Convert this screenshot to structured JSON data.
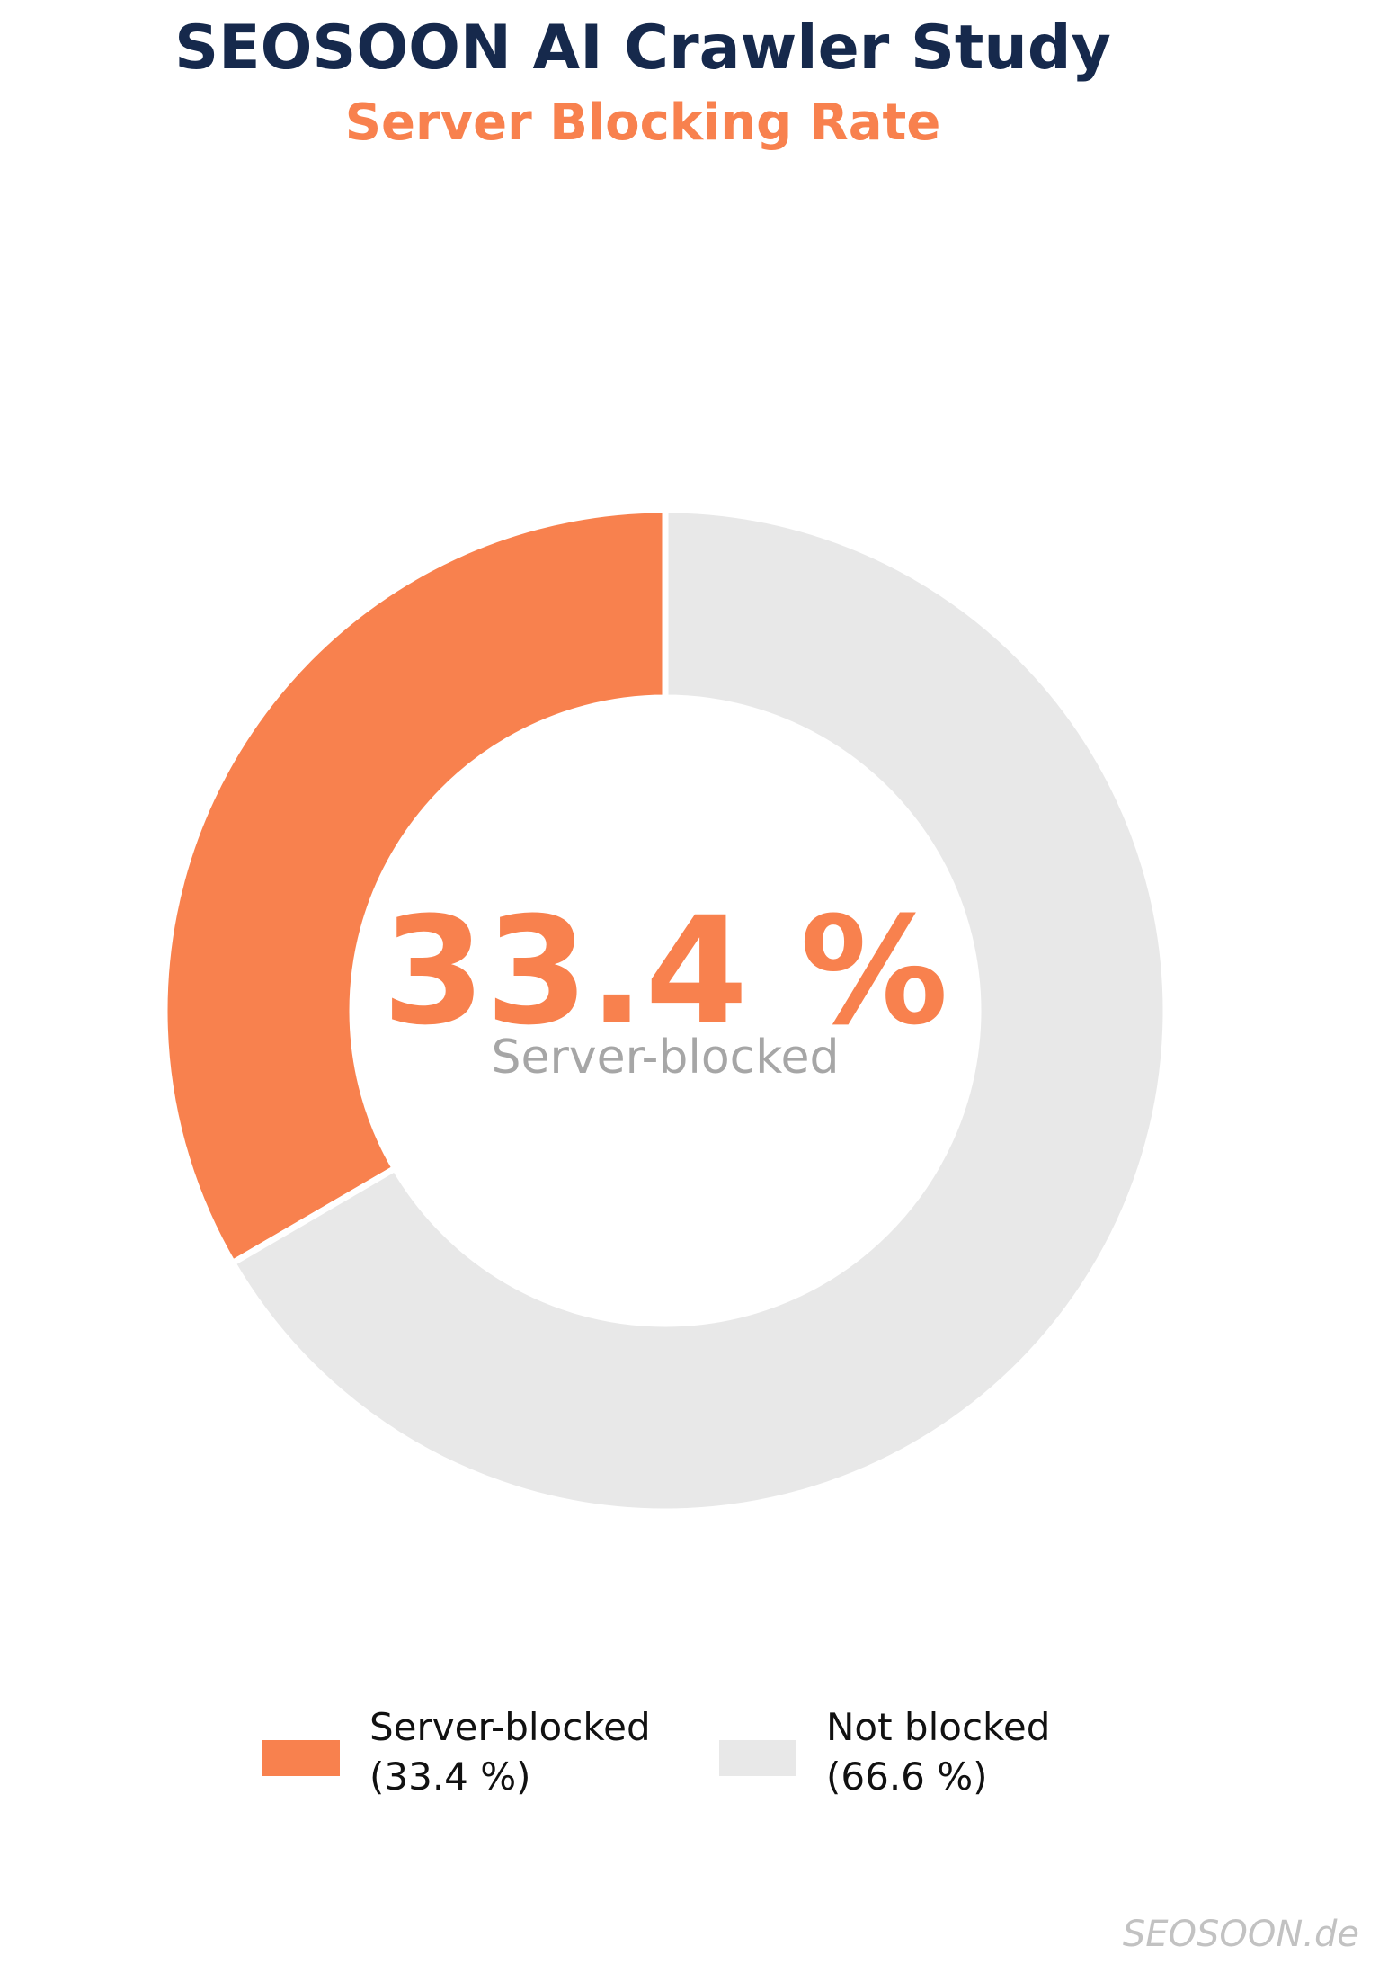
{
  "header": {
    "title": "SEOSOON AI Crawler Study",
    "subtitle": "Server Blocking Rate"
  },
  "center": {
    "value": "33.4 %",
    "label": "Server-blocked"
  },
  "legend": [
    {
      "label_line1": "Server-blocked",
      "label_line2": "(33.4 %)",
      "color": "#F8814E"
    },
    {
      "label_line1": "Not blocked",
      "label_line2": "(66.6 %)",
      "color": "#E8E8E8"
    }
  ],
  "watermark": "SEOSOON.de",
  "colors": {
    "title_navy": "#16294C",
    "accent_orange": "#F8814E",
    "slice_gray": "#E8E8E8",
    "center_label_gray": "#A6A6A6",
    "watermark_gray": "#C2C2C2",
    "segment_edge": "#ffffff"
  },
  "chart_data": {
    "type": "pie",
    "donut": true,
    "title": "SEOSOON AI Crawler Study",
    "subtitle": "Server Blocking Rate",
    "categories": [
      "Server-blocked",
      "Not blocked"
    ],
    "values": [
      33.4,
      66.6
    ],
    "colors": [
      "#F8814E",
      "#E8E8E8"
    ],
    "start_angle": 90,
    "counterclockwise": true,
    "outer_radius": 557,
    "inner_radius": 348,
    "edge_color": "#ffffff",
    "edge_width": 7,
    "center_text": "33.4 %",
    "center_label": "Server-blocked",
    "legend_position": "bottom",
    "legend_entries": [
      "Server-blocked (33.4 %)",
      "Not blocked (66.6 %)"
    ]
  }
}
